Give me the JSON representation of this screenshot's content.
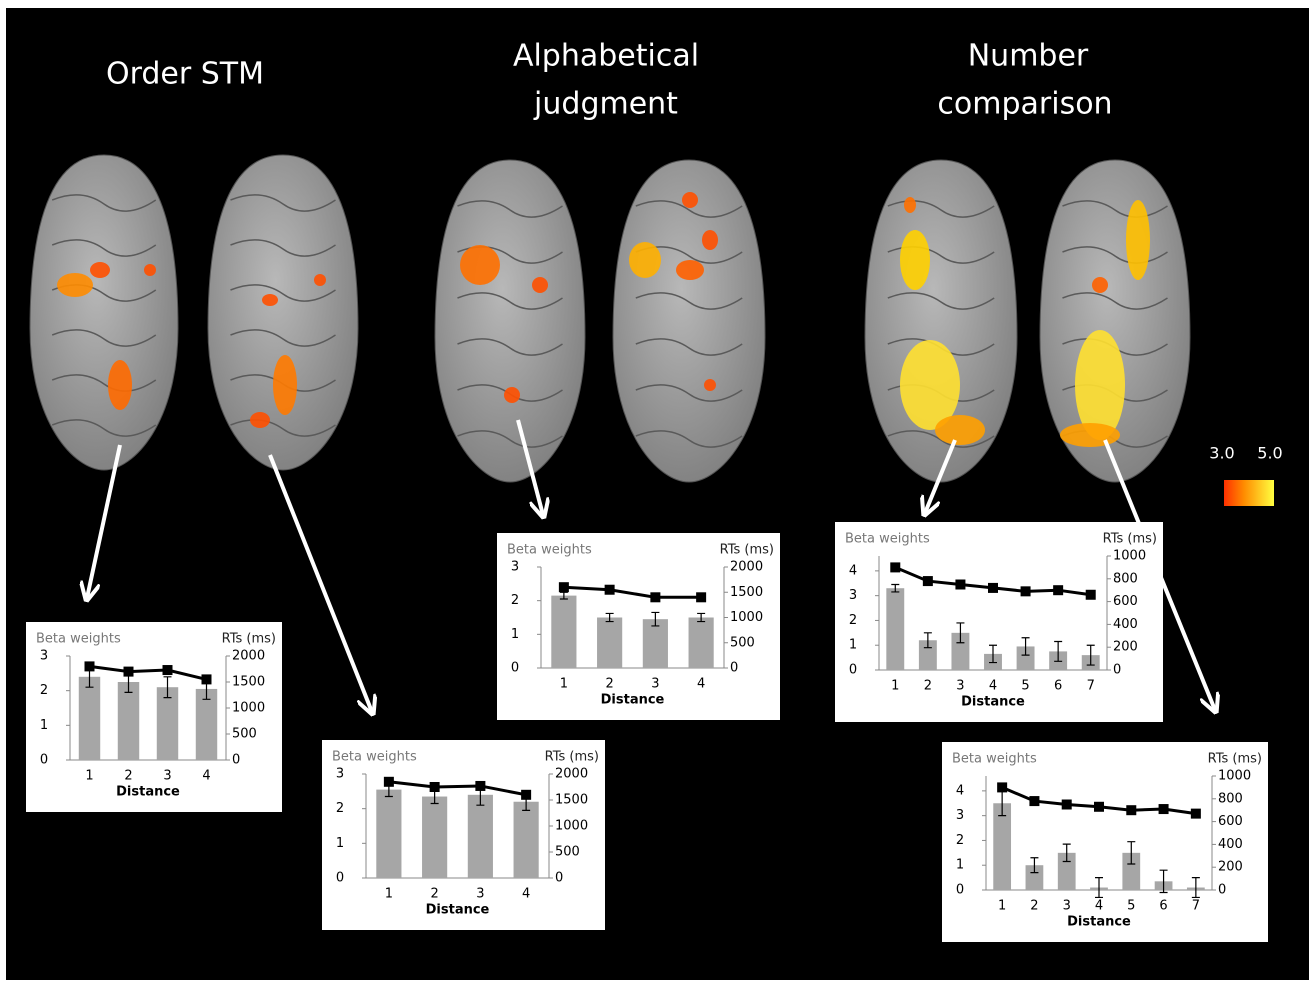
{
  "panel_titles": [
    [
      "Order STM"
    ],
    [
      "Alphabetical",
      "judgment"
    ],
    [
      "Number",
      "comparison"
    ]
  ],
  "colorbar": {
    "labels": [
      "3.0",
      "5.0"
    ]
  },
  "chart_data": [
    {
      "type": "bar",
      "categories": [
        "1",
        "2",
        "3",
        "4"
      ],
      "xlabel": "Distance",
      "ylabel": "Beta weights",
      "y2label": "RTs (ms)",
      "ylim": [
        0,
        3
      ],
      "yticks": [
        0,
        1,
        2,
        3
      ],
      "y2lim": [
        0,
        2000
      ],
      "y2ticks": [
        0,
        500,
        1000,
        1500,
        2000
      ],
      "series": [
        {
          "name": "Beta weights",
          "color": "#a6a6a6",
          "values": [
            2.4,
            2.25,
            2.1,
            2.05
          ],
          "errors": [
            0.3,
            0.3,
            0.3,
            0.3
          ]
        },
        {
          "name": "RTs (ms)",
          "color": "#000000",
          "axis": "y2",
          "values": [
            1800,
            1700,
            1730,
            1550
          ]
        }
      ]
    },
    {
      "type": "bar",
      "categories": [
        "1",
        "2",
        "3",
        "4"
      ],
      "xlabel": "Distance",
      "ylabel": "Beta weights",
      "y2label": "RTs (ms)",
      "ylim": [
        0,
        3
      ],
      "yticks": [
        0,
        1,
        2,
        3
      ],
      "y2lim": [
        0,
        2000
      ],
      "y2ticks": [
        0,
        500,
        1000,
        1500,
        2000
      ],
      "series": [
        {
          "name": "Beta weights",
          "color": "#a6a6a6",
          "values": [
            2.55,
            2.35,
            2.4,
            2.2
          ],
          "errors": [
            0.2,
            0.2,
            0.3,
            0.25
          ]
        },
        {
          "name": "RTs (ms)",
          "color": "#000000",
          "axis": "y2",
          "values": [
            1850,
            1750,
            1770,
            1600
          ]
        }
      ]
    },
    {
      "type": "bar",
      "categories": [
        "1",
        "2",
        "3",
        "4"
      ],
      "xlabel": "Distance",
      "ylabel": "Beta weights",
      "y2label": "RTs (ms)",
      "ylim": [
        0,
        3
      ],
      "yticks": [
        0,
        1,
        2,
        3
      ],
      "y2lim": [
        0,
        2000
      ],
      "y2ticks": [
        0,
        500,
        1000,
        1500,
        2000
      ],
      "series": [
        {
          "name": "Beta weights",
          "color": "#a6a6a6",
          "values": [
            2.15,
            1.5,
            1.45,
            1.5
          ],
          "errors": [
            0.1,
            0.12,
            0.2,
            0.12
          ]
        },
        {
          "name": "RTs (ms)",
          "color": "#000000",
          "axis": "y2",
          "values": [
            1600,
            1550,
            1400,
            1400
          ]
        }
      ]
    },
    {
      "type": "bar",
      "categories": [
        "1",
        "2",
        "3",
        "4",
        "5",
        "6",
        "7"
      ],
      "xlabel": "Distance",
      "ylabel": "Beta weights",
      "y2label": "RTs (ms)",
      "ylim": [
        0,
        4.6
      ],
      "yticks": [
        0,
        1,
        2,
        3,
        4
      ],
      "y2lim": [
        0,
        1000
      ],
      "y2ticks": [
        0,
        200,
        400,
        600,
        800,
        1000
      ],
      "series": [
        {
          "name": "Beta weights",
          "color": "#a6a6a6",
          "values": [
            3.3,
            1.2,
            1.5,
            0.65,
            0.95,
            0.75,
            0.6
          ],
          "errors": [
            0.15,
            0.3,
            0.4,
            0.35,
            0.35,
            0.4,
            0.4
          ]
        },
        {
          "name": "RTs (ms)",
          "color": "#000000",
          "axis": "y2",
          "values": [
            900,
            780,
            750,
            720,
            690,
            700,
            660
          ]
        }
      ]
    },
    {
      "type": "bar",
      "categories": [
        "1",
        "2",
        "3",
        "4",
        "5",
        "6",
        "7"
      ],
      "xlabel": "Distance",
      "ylabel": "Beta weights",
      "y2label": "RTs (ms)",
      "ylim": [
        0,
        4.6
      ],
      "yticks": [
        0,
        1,
        2,
        3,
        4
      ],
      "y2lim": [
        0,
        1000
      ],
      "y2ticks": [
        0,
        200,
        400,
        600,
        800,
        1000
      ],
      "series": [
        {
          "name": "Beta weights",
          "color": "#a6a6a6",
          "values": [
            3.5,
            1,
            1.5,
            0.1,
            1.5,
            0.35,
            0.1
          ],
          "errors": [
            0.5,
            0.3,
            0.35,
            0.4,
            0.45,
            0.45,
            0.4
          ]
        },
        {
          "name": "RTs (ms)",
          "color": "#000000",
          "axis": "y2",
          "values": [
            900,
            780,
            750,
            730,
            700,
            710,
            670
          ]
        }
      ]
    }
  ]
}
